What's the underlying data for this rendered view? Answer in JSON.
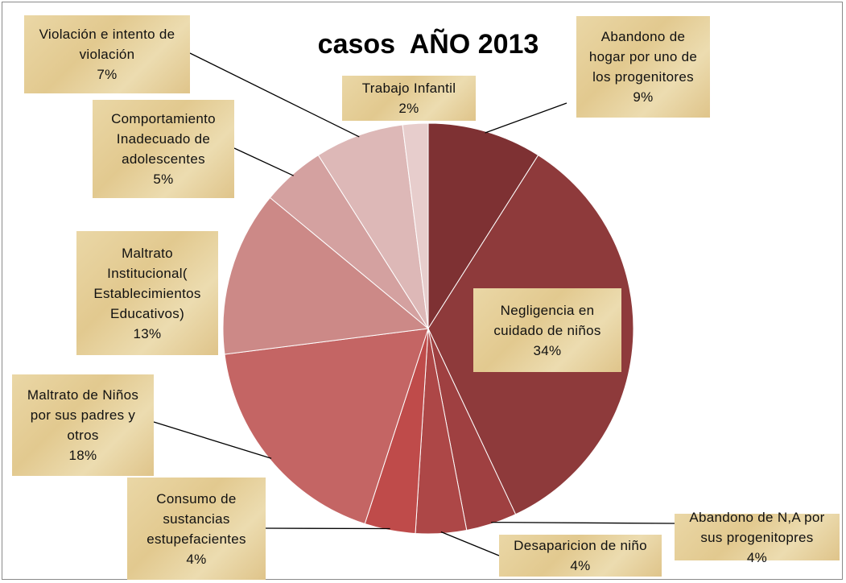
{
  "chart_data": {
    "type": "pie",
    "title": "casos  AÑO 2013",
    "categories": [
      "Abandono de hogar por uno de los progenitores",
      "Negligencia en cuidado de niños",
      "Abandono de N,A por sus progenitopres",
      "Desaparicion de niño",
      "Consumo de sustancias estupefacientes",
      "Maltrato de Niños por sus padres y otros",
      "Maltrato Institucional( Establecimientos Educativos)",
      "Comportamiento Inadecuado de adolescentes",
      "Violación e intento de violación",
      "Trabajo Infantil"
    ],
    "values": [
      9,
      34,
      4,
      4,
      4,
      18,
      13,
      5,
      7,
      2
    ],
    "value_labels": [
      "9%",
      "34%",
      "4%",
      "4%",
      "4%",
      "18%",
      "13%",
      "5%",
      "7%",
      "2%"
    ],
    "colors": [
      "#7e3133",
      "#8e3a3b",
      "#9f4041",
      "#ad4747",
      "#bf4b4a",
      "#c46564",
      "#cc8987",
      "#d4a1a0",
      "#ddb8b7",
      "#e7cdcc"
    ]
  }
}
